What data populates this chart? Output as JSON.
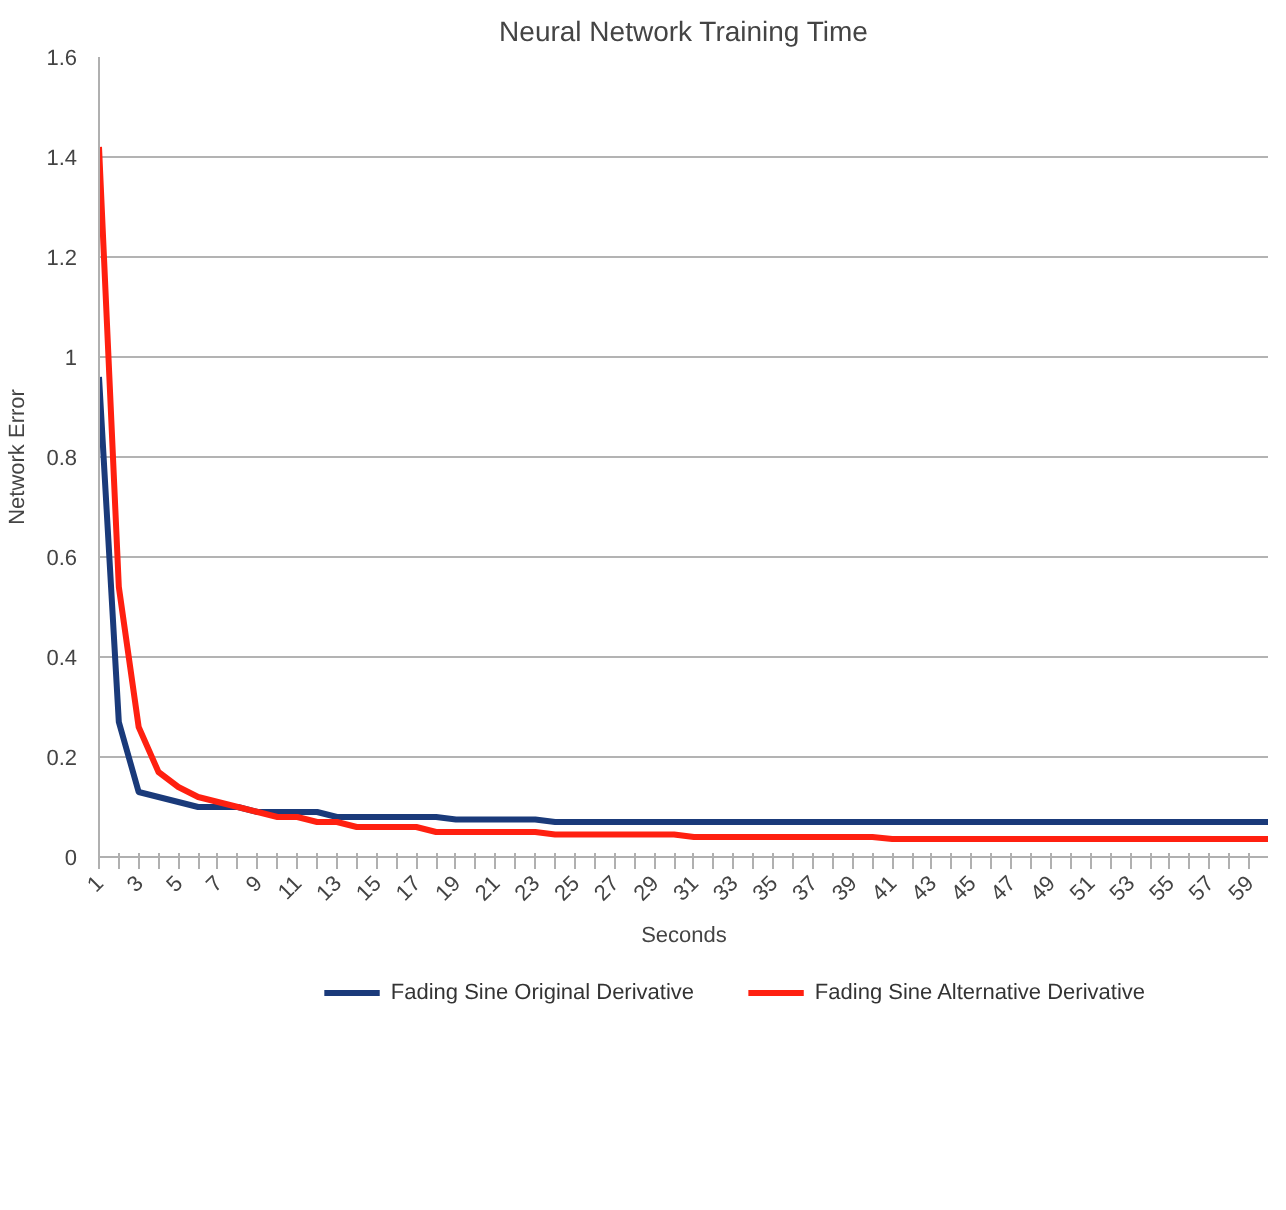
{
  "chart_data": {
    "type": "line",
    "title": "Neural Network Training Time",
    "xlabel": "Seconds",
    "ylabel": "Network Error",
    "x": [
      1,
      2,
      3,
      4,
      5,
      6,
      7,
      8,
      9,
      10,
      11,
      12,
      13,
      14,
      15,
      16,
      17,
      18,
      19,
      20,
      21,
      22,
      23,
      24,
      25,
      26,
      27,
      28,
      29,
      30,
      31,
      32,
      33,
      34,
      35,
      36,
      37,
      38,
      39,
      40,
      41,
      42,
      43,
      44,
      45,
      46,
      47,
      48,
      49,
      50,
      51,
      52,
      53,
      54,
      55,
      56,
      57,
      58,
      59,
      60
    ],
    "series": [
      {
        "name": "Fading Sine Original Derivative",
        "color": "#1a3a7a",
        "values": [
          0.96,
          0.27,
          0.13,
          0.12,
          0.11,
          0.1,
          0.1,
          0.1,
          0.09,
          0.09,
          0.09,
          0.09,
          0.08,
          0.08,
          0.08,
          0.08,
          0.08,
          0.08,
          0.075,
          0.075,
          0.075,
          0.075,
          0.075,
          0.07,
          0.07,
          0.07,
          0.07,
          0.07,
          0.07,
          0.07,
          0.07,
          0.07,
          0.07,
          0.07,
          0.07,
          0.07,
          0.07,
          0.07,
          0.07,
          0.07,
          0.07,
          0.07,
          0.07,
          0.07,
          0.07,
          0.07,
          0.07,
          0.07,
          0.07,
          0.07,
          0.07,
          0.07,
          0.07,
          0.07,
          0.07,
          0.07,
          0.07,
          0.07,
          0.07,
          0.07
        ]
      },
      {
        "name": "Fading Sine Alternative Derivative",
        "color": "#ff2010",
        "values": [
          1.42,
          0.54,
          0.26,
          0.17,
          0.14,
          0.12,
          0.11,
          0.1,
          0.09,
          0.08,
          0.08,
          0.07,
          0.07,
          0.06,
          0.06,
          0.06,
          0.06,
          0.05,
          0.05,
          0.05,
          0.05,
          0.05,
          0.05,
          0.045,
          0.045,
          0.045,
          0.045,
          0.045,
          0.045,
          0.045,
          0.04,
          0.04,
          0.04,
          0.04,
          0.04,
          0.04,
          0.04,
          0.04,
          0.04,
          0.04,
          0.036,
          0.036,
          0.036,
          0.036,
          0.036,
          0.036,
          0.036,
          0.036,
          0.036,
          0.036,
          0.036,
          0.036,
          0.036,
          0.036,
          0.036,
          0.036,
          0.036,
          0.036,
          0.036,
          0.036
        ]
      }
    ],
    "xlim": [
      1,
      60
    ],
    "xticks": [
      1,
      {
        "value": 2,
        "label": null
      },
      3,
      {
        "value": 4,
        "label": null
      },
      5,
      {
        "value": 6,
        "label": null
      },
      7,
      {
        "value": 8,
        "label": null
      },
      9,
      {
        "value": 10,
        "label": null
      },
      11,
      {
        "value": 12,
        "label": null
      },
      13,
      {
        "value": 14,
        "label": null
      },
      15,
      {
        "value": 16,
        "label": null
      },
      17,
      {
        "value": 18,
        "label": null
      },
      19,
      {
        "value": 20,
        "label": null
      },
      21,
      {
        "value": 22,
        "label": null
      },
      23,
      {
        "value": 24,
        "label": null
      },
      25,
      {
        "value": 26,
        "label": null
      },
      27,
      {
        "value": 28,
        "label": null
      },
      29,
      {
        "value": 30,
        "label": null
      },
      31,
      {
        "value": 32,
        "label": null
      },
      33,
      {
        "value": 34,
        "label": null
      },
      35,
      {
        "value": 36,
        "label": null
      },
      37,
      {
        "value": 38,
        "label": null
      },
      39,
      {
        "value": 40,
        "label": null
      },
      41,
      {
        "value": 42,
        "label": null
      },
      43,
      {
        "value": 44,
        "label": null
      },
      45,
      {
        "value": 46,
        "label": null
      },
      47,
      {
        "value": 48,
        "label": null
      },
      49,
      {
        "value": 50,
        "label": null
      },
      51,
      {
        "value": 52,
        "label": null
      },
      53,
      {
        "value": 54,
        "label": null
      },
      55,
      {
        "value": 56,
        "label": null
      },
      57,
      {
        "value": 58,
        "label": null
      },
      59,
      {
        "value": 60,
        "label": null
      }
    ],
    "ylim": [
      0,
      1.6
    ],
    "yticks": [
      0,
      0.2,
      0.4,
      0.6,
      0.8,
      1,
      1.2,
      1.4,
      1.6
    ],
    "grid": "y",
    "legend": "bottom",
    "marker": "none",
    "line_style": "solid"
  }
}
